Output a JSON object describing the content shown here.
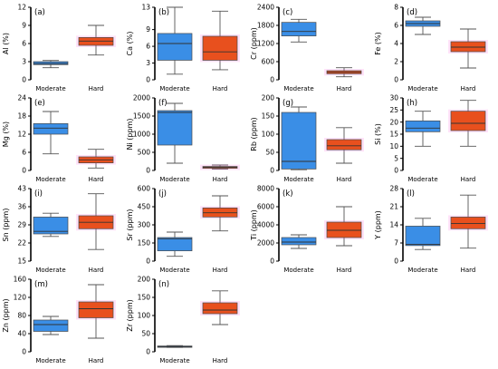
{
  "colors": {
    "moderate": "#3a8ee6",
    "hard": "#e8501e",
    "halo": "#ff66dd"
  },
  "chart_data": [
    {
      "type": "box",
      "panel": "(a)",
      "ylabel": "Al (%)",
      "ylim": [
        0,
        12
      ],
      "yticks": [
        0,
        3,
        6,
        9,
        12
      ],
      "categories": [
        "Moderate",
        "Hard"
      ],
      "boxes": [
        {
          "min": 2.0,
          "q1": 2.5,
          "median": 2.7,
          "q3": 3.0,
          "max": 3.2
        },
        {
          "min": 4.1,
          "q1": 5.7,
          "median": 6.4,
          "q3": 7.0,
          "max": 9.0
        }
      ]
    },
    {
      "type": "box",
      "panel": "(b)",
      "ylabel": "Ca (%)",
      "ylim": [
        0,
        13
      ],
      "yticks": [
        0,
        3,
        6,
        9,
        13
      ],
      "categories": [
        "Moderate",
        "Hard"
      ],
      "boxes": [
        {
          "min": 1.0,
          "q1": 3.5,
          "median": 6.5,
          "q3": 8.3,
          "max": 13.0
        },
        {
          "min": 1.8,
          "q1": 3.5,
          "median": 5.0,
          "q3": 7.8,
          "max": 12.3
        }
      ]
    },
    {
      "type": "box",
      "panel": "(c)",
      "ylabel": "Cr (ppm)",
      "ylim": [
        0,
        2400
      ],
      "yticks": [
        0,
        600,
        1200,
        1800,
        2400
      ],
      "categories": [
        "Moderate",
        "Hard"
      ],
      "boxes": [
        {
          "min": 1250,
          "q1": 1450,
          "median": 1600,
          "q3": 1900,
          "max": 2000
        },
        {
          "min": 100,
          "q1": 200,
          "median": 250,
          "q3": 300,
          "max": 400
        }
      ]
    },
    {
      "type": "box",
      "panel": "(d)",
      "ylabel": "Fe (%)",
      "ylim": [
        0,
        8
      ],
      "yticks": [
        0,
        2,
        4,
        6,
        8
      ],
      "categories": [
        "Moderate",
        "Hard"
      ],
      "boxes": [
        {
          "min": 5.0,
          "q1": 5.9,
          "median": 6.2,
          "q3": 6.5,
          "max": 6.9
        },
        {
          "min": 1.3,
          "q1": 3.1,
          "median": 3.6,
          "q3": 4.2,
          "max": 5.6
        }
      ]
    },
    {
      "type": "box",
      "panel": "(e)",
      "ylabel": "Mg (%)",
      "ylim": [
        0,
        24
      ],
      "yticks": [
        0,
        6,
        12,
        18,
        24
      ],
      "categories": [
        "Moderate",
        "Hard"
      ],
      "boxes": [
        {
          "min": 5.5,
          "q1": 12.0,
          "median": 14.0,
          "q3": 15.5,
          "max": 19.5
        },
        {
          "min": 0.8,
          "q1": 2.5,
          "median": 3.5,
          "q3": 4.5,
          "max": 7.0
        }
      ]
    },
    {
      "type": "box",
      "panel": "(f)",
      "ylabel": "Ni (ppm)",
      "ylim": [
        0,
        2000
      ],
      "yticks": [
        0,
        500,
        1000,
        1500,
        2000
      ],
      "categories": [
        "Moderate",
        "Hard"
      ],
      "boxes": [
        {
          "min": 200,
          "q1": 700,
          "median": 1600,
          "q3": 1650,
          "max": 1850
        },
        {
          "min": 40,
          "q1": 60,
          "median": 90,
          "q3": 110,
          "max": 150
        }
      ]
    },
    {
      "type": "box",
      "panel": "(g)",
      "ylabel": "Rb (ppm)",
      "ylim": [
        0,
        200
      ],
      "yticks": [
        0,
        50,
        100,
        150,
        200
      ],
      "categories": [
        "Moderate",
        "Hard"
      ],
      "boxes": [
        {
          "min": 2,
          "q1": 4,
          "median": 25,
          "q3": 160,
          "max": 175
        },
        {
          "min": 20,
          "q1": 57,
          "median": 68,
          "q3": 85,
          "max": 118
        }
      ]
    },
    {
      "type": "box",
      "panel": "(h)",
      "ylabel": "Si (%)",
      "ylim": [
        0,
        30
      ],
      "yticks": [
        0,
        5,
        10,
        15,
        20,
        25,
        30
      ],
      "categories": [
        "Moderate",
        "Hard"
      ],
      "boxes": [
        {
          "min": 10.0,
          "q1": 16.0,
          "median": 17.5,
          "q3": 20.5,
          "max": 24.5
        },
        {
          "min": 10.0,
          "q1": 16.5,
          "median": 19.5,
          "q3": 24.5,
          "max": 29.0
        }
      ]
    },
    {
      "type": "box",
      "panel": "(i)",
      "ylabel": "Sn (ppm)",
      "ylim": [
        15,
        43
      ],
      "yticks": [
        15,
        22,
        29,
        36,
        43
      ],
      "categories": [
        "Moderate",
        "Hard"
      ],
      "boxes": [
        {
          "min": 24.5,
          "q1": 25.5,
          "median": 26.5,
          "q3": 32.0,
          "max": 33.5
        },
        {
          "min": 19.5,
          "q1": 27.5,
          "median": 30.0,
          "q3": 32.5,
          "max": 41.0
        }
      ]
    },
    {
      "type": "box",
      "panel": "(j)",
      "ylabel": "Sr (ppm)",
      "ylim": [
        0,
        600
      ],
      "yticks": [
        0,
        150,
        300,
        450,
        600
      ],
      "categories": [
        "Moderate",
        "Hard"
      ],
      "boxes": [
        {
          "min": 40,
          "q1": 85,
          "median": 185,
          "q3": 195,
          "max": 240
        },
        {
          "min": 250,
          "q1": 365,
          "median": 400,
          "q3": 440,
          "max": 540
        }
      ]
    },
    {
      "type": "box",
      "panel": "(k)",
      "ylabel": "Ti (ppm)",
      "ylim": [
        0,
        8000
      ],
      "yticks": [
        0,
        2000,
        4000,
        6000,
        8000
      ],
      "categories": [
        "Moderate",
        "Hard"
      ],
      "boxes": [
        {
          "min": 1400,
          "q1": 1800,
          "median": 2100,
          "q3": 2600,
          "max": 2900
        },
        {
          "min": 1700,
          "q1": 2600,
          "median": 3400,
          "q3": 4300,
          "max": 6000
        }
      ]
    },
    {
      "type": "box",
      "panel": "(l)",
      "ylabel": "Y (ppm)",
      "ylim": [
        0,
        28
      ],
      "yticks": [
        0,
        7,
        14,
        21,
        28
      ],
      "categories": [
        "Moderate",
        "Hard"
      ],
      "boxes": [
        {
          "min": 4.5,
          "q1": 6.0,
          "median": 6.5,
          "q3": 13.5,
          "max": 16.5
        },
        {
          "min": 5.0,
          "q1": 12.5,
          "median": 14.5,
          "q3": 17.0,
          "max": 25.5
        }
      ]
    },
    {
      "type": "box",
      "panel": "(m)",
      "ylabel": "Zn (ppm)",
      "ylim": [
        0,
        160
      ],
      "yticks": [
        0,
        40,
        80,
        120,
        160
      ],
      "categories": [
        "Moderate",
        "Hard"
      ],
      "boxes": [
        {
          "min": 38,
          "q1": 45,
          "median": 60,
          "q3": 70,
          "max": 78
        },
        {
          "min": 30,
          "q1": 75,
          "median": 95,
          "q3": 110,
          "max": 148
        }
      ]
    },
    {
      "type": "box",
      "panel": "(n)",
      "ylabel": "Zr (ppm)",
      "ylim": [
        0,
        200
      ],
      "yticks": [
        0,
        50,
        100,
        150,
        200
      ],
      "categories": [
        "Moderate",
        "Hard"
      ],
      "boxes": [
        {
          "min": 12,
          "q1": 13,
          "median": 14,
          "q3": 16,
          "max": 17
        },
        {
          "min": 75,
          "q1": 105,
          "median": 115,
          "q3": 135,
          "max": 168
        }
      ]
    }
  ]
}
